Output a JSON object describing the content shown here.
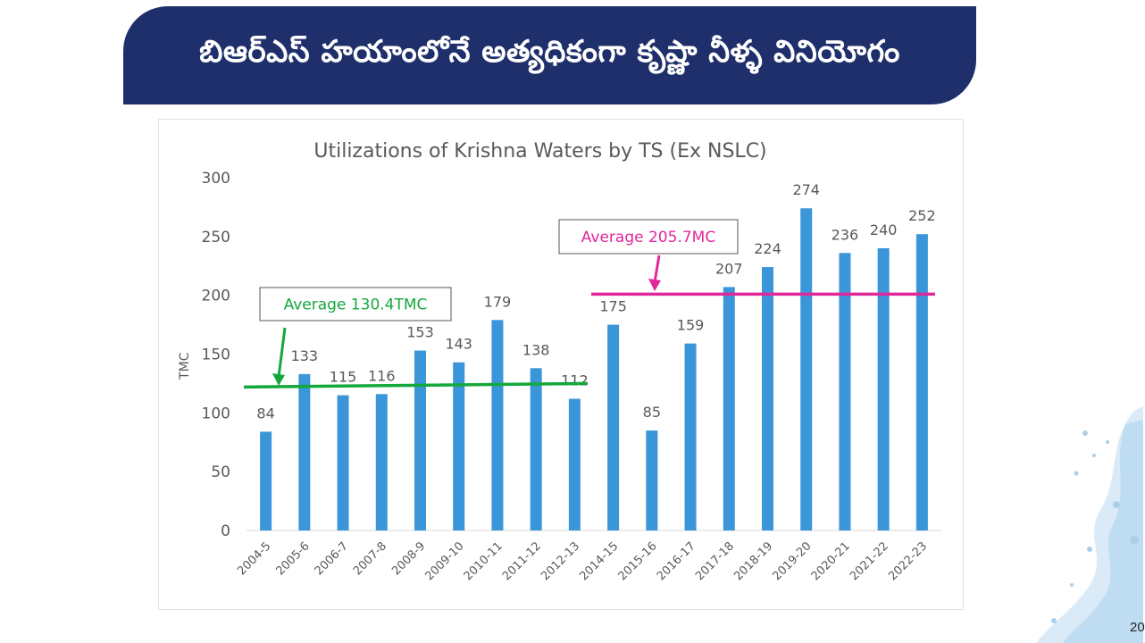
{
  "slide": {
    "title": "బిఆర్ఎస్ హయాంలోనే అత్యధికంగా కృష్ణా నీళ్ళ వినియోగం",
    "page_number": "20"
  },
  "colors": {
    "banner": "#1f2f6b",
    "bar": "#3a96d8",
    "avg1": "#14a83c",
    "avg2": "#e0289b",
    "text": "#595959"
  },
  "chart_data": {
    "type": "bar",
    "title": "Utilizations of Krishna Waters by TS (Ex NSLC)",
    "xlabel": "",
    "ylabel": "TMC",
    "ylim": [
      0,
      300
    ],
    "ytick_step": 50,
    "categories": [
      "2004-5",
      "2005-6",
      "2006-7",
      "2007-8",
      "2008-9",
      "2009-10",
      "2010-11",
      "2011-12",
      "2012-13",
      "2014-15",
      "2015-16",
      "2016-17",
      "2017-18",
      "2018-19",
      "2019-20",
      "2020-21",
      "2021-22",
      "2022-23"
    ],
    "values": [
      84,
      133,
      115,
      116,
      153,
      143,
      179,
      138,
      112,
      175,
      85,
      159,
      207,
      224,
      274,
      236,
      240,
      252
    ],
    "data_labels": [
      "84",
      "133",
      "115",
      "116",
      "153",
      "143",
      "179",
      "138",
      "112",
      "175",
      "85",
      "159",
      "207",
      "224",
      "274",
      "236",
      "240",
      "252"
    ],
    "annotations": [
      {
        "label": "Average 130.4TMC",
        "value": 130.4,
        "line_from": 0,
        "line_to": 8,
        "line_start_y": 122,
        "line_end_y": 125,
        "color": "green"
      },
      {
        "label": "Average 205.7MC",
        "value": 205.7,
        "line_from": 9,
        "line_to": 17,
        "line_start_y": 201,
        "line_end_y": 201,
        "color": "magenta"
      }
    ]
  }
}
